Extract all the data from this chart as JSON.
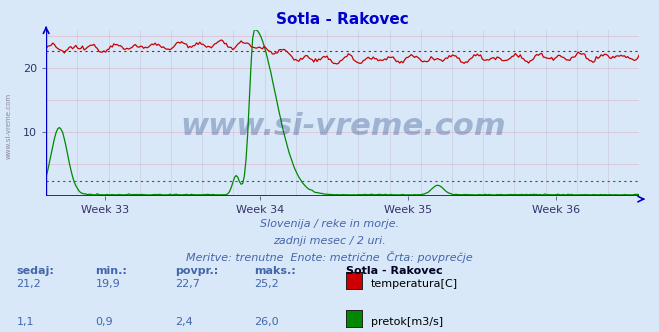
{
  "title": "Sotla - Rakovec",
  "title_color": "#0000cc",
  "background_color": "#d8e8f8",
  "plot_bg_color": "#d8e8f8",
  "x_labels": [
    "Week 33",
    "Week 34",
    "Week 35",
    "Week 36"
  ],
  "ylim": [
    0,
    26
  ],
  "yticks": [
    10,
    20
  ],
  "grid_color": "#ddbbbb",
  "grid_color_minor": "#ccccdd",
  "temp_color": "#cc0000",
  "flow_color": "#008800",
  "blue_base_color": "#0000cc",
  "temp_avg": 22.7,
  "flow_avg": 2.4,
  "subtitle1": "Slovenija / reke in morje.",
  "subtitle2": "zadnji mesec / 2 uri.",
  "subtitle3": "Meritve: trenutne  Enote: metrične  Črta: povprečje",
  "subtitle_color": "#4466aa",
  "legend_title": "Sotla - Rakovec",
  "label1": "temperatura[C]",
  "label2": "pretok[m3/s]",
  "watermark": "www.si-vreme.com",
  "sedaj_label": "sedaj:",
  "min_label": "min.:",
  "povpr_label": "povpr.:",
  "maks_label": "maks.:",
  "temp_sedaj": "21,2",
  "temp_min": "19,9",
  "temp_povpr": "22,7",
  "temp_maks": "25,2",
  "flow_sedaj": "1,1",
  "flow_min": "0,9",
  "flow_povpr": "2,4",
  "flow_maks": "26,0",
  "n_points": 360
}
